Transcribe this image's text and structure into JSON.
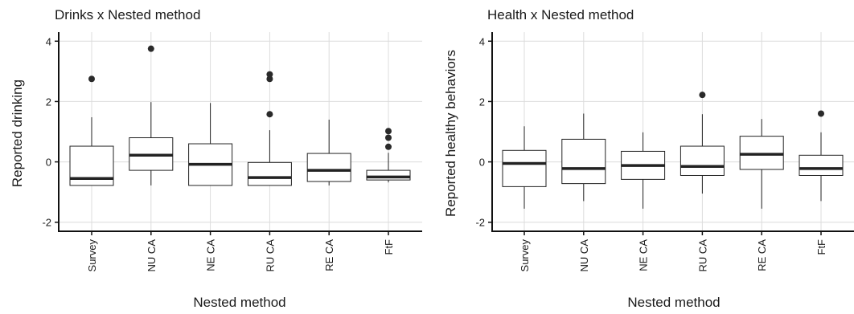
{
  "chart_data": [
    {
      "type": "box",
      "title": "Drinks x Nested method",
      "xlabel": "Nested method",
      "ylabel": "Reported drinking",
      "categories": [
        "Survey",
        "NU CA",
        "NE CA",
        "RU CA",
        "RE CA",
        "FtF"
      ],
      "ylim": [
        -2.3,
        4.3
      ],
      "yticks": [
        "-2",
        "0",
        "2",
        "4"
      ],
      "ytick_values": [
        -2,
        0,
        2,
        4
      ],
      "grid": true,
      "boxes": [
        {
          "min": -0.78,
          "q1": -0.78,
          "median": -0.55,
          "q3": 0.52,
          "max": 1.48,
          "outliers": [
            2.75
          ]
        },
        {
          "min": -0.78,
          "q1": -0.28,
          "median": 0.22,
          "q3": 0.8,
          "max": 1.98,
          "outliers": [
            3.75
          ]
        },
        {
          "min": -0.78,
          "q1": -0.78,
          "median": -0.08,
          "q3": 0.6,
          "max": 1.95,
          "outliers": []
        },
        {
          "min": -0.78,
          "q1": -0.78,
          "median": -0.52,
          "q3": -0.02,
          "max": 1.05,
          "outliers": [
            1.58,
            2.75,
            2.9
          ]
        },
        {
          "min": -0.78,
          "q1": -0.65,
          "median": -0.28,
          "q3": 0.28,
          "max": 1.4,
          "outliers": []
        },
        {
          "min": -0.68,
          "q1": -0.6,
          "median": -0.5,
          "q3": -0.28,
          "max": 0.3,
          "outliers": [
            0.5,
            0.8,
            1.02
          ]
        }
      ]
    },
    {
      "type": "box",
      "title": "Health x Nested method",
      "xlabel": "Nested method",
      "ylabel": "Reported healthy behaviors",
      "categories": [
        "Survey",
        "NU CA",
        "NE CA",
        "RU CA",
        "RE CA",
        "FtF"
      ],
      "ylim": [
        -2.3,
        4.3
      ],
      "yticks": [
        "-2",
        "0",
        "2",
        "4"
      ],
      "ytick_values": [
        -2,
        0,
        2,
        4
      ],
      "grid": true,
      "boxes": [
        {
          "min": -1.55,
          "q1": -0.82,
          "median": -0.05,
          "q3": 0.38,
          "max": 1.18,
          "outliers": []
        },
        {
          "min": -1.3,
          "q1": -0.72,
          "median": -0.22,
          "q3": 0.75,
          "max": 1.6,
          "outliers": []
        },
        {
          "min": -1.55,
          "q1": -0.58,
          "median": -0.12,
          "q3": 0.35,
          "max": 0.98,
          "outliers": []
        },
        {
          "min": -1.05,
          "q1": -0.45,
          "median": -0.15,
          "q3": 0.52,
          "max": 1.58,
          "outliers": [
            2.22
          ]
        },
        {
          "min": -1.55,
          "q1": -0.25,
          "median": 0.25,
          "q3": 0.85,
          "max": 1.42,
          "outliers": []
        },
        {
          "min": -1.3,
          "q1": -0.45,
          "median": -0.22,
          "q3": 0.22,
          "max": 0.98,
          "outliers": [
            1.6
          ]
        }
      ]
    }
  ]
}
